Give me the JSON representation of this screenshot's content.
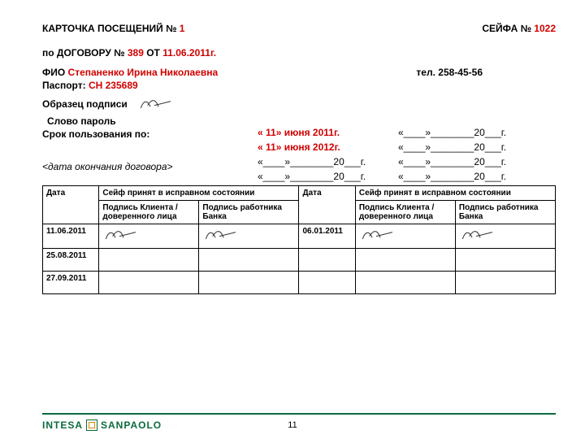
{
  "header": {
    "card_title_prefix": "КАРТОЧКА ПОСЕЩЕНИЙ №",
    "card_no": "1",
    "safe_title_prefix": "СЕЙФА №",
    "safe_no": "1022"
  },
  "contract_line": {
    "prefix": "по ДОГОВОРУ  №",
    "number": "389",
    "mid": "ОТ",
    "date": "11.06.2011г."
  },
  "fio": {
    "label": "ФИО",
    "value": "Степаненко Ирина Николаевна",
    "tel_label": "тел.",
    "tel_value": "258-45-56"
  },
  "passport": {
    "label": "Паспорт:",
    "value": "СН 235689"
  },
  "sign_sample_label": "Образец подписи",
  "password_label": "Слово пароль",
  "usage_label": "Срок пользования по:",
  "usage_end_placeholder": "<дата окончания договора>",
  "red_dates": {
    "d1": "« 11» июня 2011г.",
    "d2": "« 11» июня 2012г."
  },
  "blank_date_template": "«____»________20___г.",
  "table": {
    "headers": {
      "date": "Дата",
      "good_condition": "Сейф принят в исправном состоянии",
      "client_sign": "Подпись Клиента / доверенного лица",
      "bank_sign": "Подпись работника Банка"
    },
    "rows": [
      {
        "date_left": "11.06.2011",
        "date_right": "06.01.2011",
        "has_sig": true
      },
      {
        "date_left": "25.08.2011",
        "date_right": "",
        "has_sig": false
      },
      {
        "date_left": "27.09.2011",
        "date_right": "",
        "has_sig": false
      }
    ]
  },
  "brand": {
    "part1": "INTESA",
    "part2": "SANPAOLO"
  },
  "page_number": "11",
  "colors": {
    "brand_green": "#0a6b3d",
    "red": "#d00000"
  }
}
